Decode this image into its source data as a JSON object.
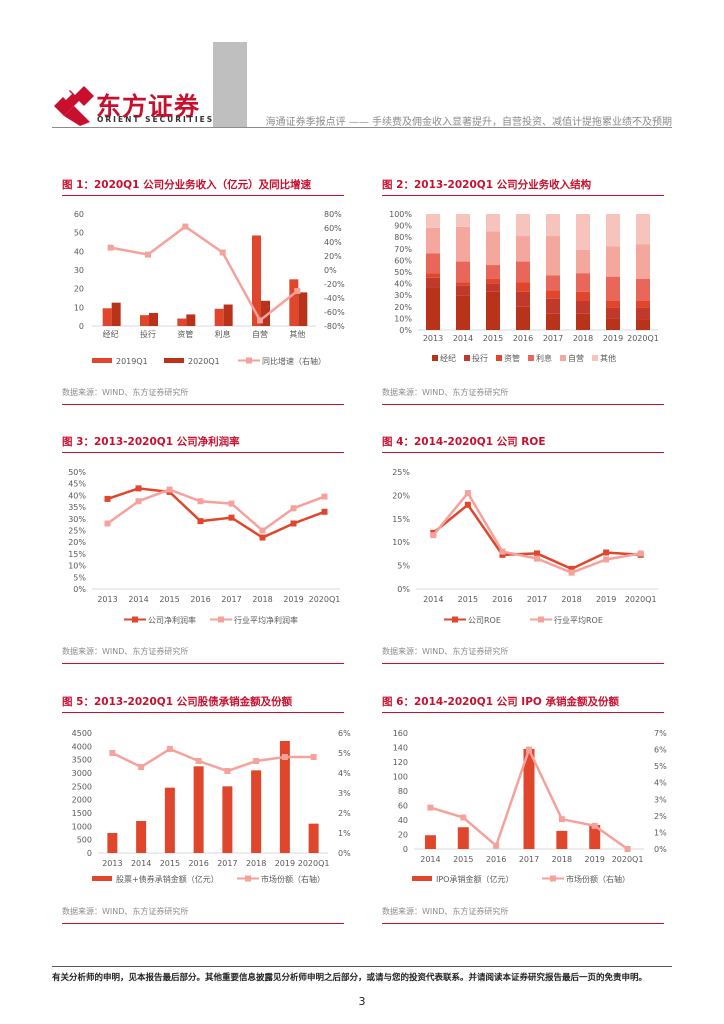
{
  "header": {
    "logo_cn": "东方证券",
    "logo_en": "ORIENT SECURITIES",
    "report_title": "海通证券季报点评 —— 手续费及佣金收入显著提升，自营投资、减值计提拖累业绩不及预期"
  },
  "colors": {
    "accent": "#c8102e",
    "dark_red": "#b83319",
    "red": "#e0462c",
    "salmon": "#f08a7a",
    "pink": "#f3a79d",
    "light_pink": "#f6c4bd",
    "line_pink": "#f4a29b",
    "grey": "#bfbfbf"
  },
  "figures": [
    {
      "title": "图 1：2020Q1 公司分业务收入（亿元）及同比增速",
      "source": "数据来源：WIND、东方证券研究所"
    },
    {
      "title": "图 2：2013-2020Q1 公司分业务收入结构",
      "source": "数据来源：WIND、东方证券研究所"
    },
    {
      "title": "图 3：2013-2020Q1 公司净利润率",
      "source": "数据来源：WIND、东方证券研究所"
    },
    {
      "title": "图 4：2014-2020Q1 公司 ROE",
      "source": "数据来源：WIND、东方证券研究所"
    },
    {
      "title": "图 5：2013-2020Q1 公司股债承销金额及份额",
      "source": "数据来源：WIND、东方证券研究所"
    },
    {
      "title": "图 6：2014-2020Q1 公司 IPO 承销金额及份额",
      "source": "数据来源：WIND、东方证券研究所"
    }
  ],
  "chart_data": [
    {
      "type": "bar",
      "categories": [
        "经纪",
        "投行",
        "资管",
        "利息",
        "自营",
        "其他"
      ],
      "series": [
        {
          "name": "2019Q1",
          "kind": "bar",
          "axis": "left",
          "values": [
            9.5,
            5.8,
            4.0,
            9.2,
            48.5,
            25.0
          ]
        },
        {
          "name": "2020Q1",
          "kind": "bar",
          "axis": "left",
          "values": [
            12.5,
            7.0,
            6.2,
            11.5,
            13.5,
            18.0
          ]
        },
        {
          "name": "同比增速（右轴）",
          "kind": "line",
          "axis": "right",
          "values": [
            32,
            22,
            62,
            25,
            -72,
            -30
          ]
        }
      ],
      "yticks": [
        "0",
        "10",
        "20",
        "30",
        "40",
        "50",
        "60"
      ],
      "ylim": [
        0,
        60
      ],
      "y2ticks": [
        "-80%",
        "-60%",
        "-40%",
        "-20%",
        "0%",
        "20%",
        "40%",
        "60%",
        "80%"
      ],
      "y2lim": [
        -80,
        80
      ]
    },
    {
      "type": "bar",
      "stacked": true,
      "categories": [
        "2013",
        "2014",
        "2015",
        "2016",
        "2017",
        "2018",
        "2019",
        "2020Q1"
      ],
      "series": [
        {
          "name": "经纪",
          "values": [
            37,
            30,
            33,
            20,
            14,
            14,
            10,
            9
          ]
        },
        {
          "name": "投行",
          "values": [
            8,
            8,
            7,
            13,
            13,
            11,
            9,
            10
          ]
        },
        {
          "name": "资管",
          "values": [
            4,
            3,
            4,
            8,
            7,
            8,
            6,
            6
          ]
        },
        {
          "name": "利息",
          "values": [
            17,
            18,
            12,
            18,
            13,
            16,
            21,
            19
          ]
        },
        {
          "name": "自营",
          "values": [
            22,
            30,
            29,
            22,
            34,
            20,
            26,
            30
          ]
        },
        {
          "name": "其他",
          "values": [
            12,
            11,
            15,
            19,
            19,
            31,
            28,
            26
          ]
        }
      ],
      "yticks": [
        "0%",
        "10%",
        "20%",
        "30%",
        "40%",
        "50%",
        "60%",
        "70%",
        "80%",
        "90%",
        "100%"
      ],
      "ylim": [
        0,
        100
      ]
    },
    {
      "type": "line",
      "categories": [
        "2013",
        "2014",
        "2015",
        "2016",
        "2017",
        "2018",
        "2019",
        "2020Q1"
      ],
      "series": [
        {
          "name": "公司净利润率",
          "values": [
            38.5,
            43,
            41.5,
            29,
            30.5,
            22,
            28,
            33
          ]
        },
        {
          "name": "行业平均净利润率",
          "values": [
            28,
            37.5,
            42.5,
            37.5,
            36.5,
            25,
            34.5,
            39.5
          ]
        }
      ],
      "yticks": [
        "0%",
        "5%",
        "10%",
        "15%",
        "20%",
        "25%",
        "30%",
        "35%",
        "40%",
        "45%",
        "50%"
      ],
      "ylim": [
        0,
        50
      ]
    },
    {
      "type": "line",
      "categories": [
        "2014",
        "2015",
        "2016",
        "2017",
        "2018",
        "2019",
        "2020Q1"
      ],
      "series": [
        {
          "name": "公司ROE",
          "values": [
            12,
            18,
            7.3,
            7.6,
            4.3,
            7.8,
            7.3
          ]
        },
        {
          "name": "行业平均ROE",
          "values": [
            11.5,
            20.5,
            8.0,
            6.5,
            3.5,
            6.3,
            7.6
          ]
        }
      ],
      "yticks": [
        "0%",
        "5%",
        "10%",
        "15%",
        "20%",
        "25%"
      ],
      "ylim": [
        0,
        25
      ]
    },
    {
      "type": "bar",
      "categories": [
        "2013",
        "2014",
        "2015",
        "2016",
        "2017",
        "2018",
        "2019",
        "2020Q1"
      ],
      "series": [
        {
          "name": "股票+债券承销金额（亿元）",
          "kind": "bar",
          "axis": "left",
          "values": [
            750,
            1200,
            2450,
            3250,
            2500,
            3100,
            4200,
            1100
          ]
        },
        {
          "name": "市场份额（右轴）",
          "kind": "line",
          "axis": "right",
          "values": [
            5.0,
            4.3,
            5.2,
            4.6,
            4.1,
            4.6,
            4.8,
            4.8
          ]
        }
      ],
      "yticks": [
        "0",
        "500",
        "1000",
        "1500",
        "2000",
        "2500",
        "3000",
        "3500",
        "4000",
        "4500"
      ],
      "ylim": [
        0,
        4500
      ],
      "y2ticks": [
        "0%",
        "1%",
        "2%",
        "3%",
        "4%",
        "5%",
        "6%"
      ],
      "y2lim": [
        0,
        6
      ]
    },
    {
      "type": "bar",
      "categories": [
        "2014",
        "2015",
        "2016",
        "2017",
        "2018",
        "2019",
        "2020Q1"
      ],
      "series": [
        {
          "name": "IPO承销金额（亿元）",
          "kind": "bar",
          "axis": "left",
          "values": [
            19,
            30,
            0,
            138,
            25,
            33,
            0
          ]
        },
        {
          "name": "市场份额（右轴）",
          "kind": "line",
          "axis": "right",
          "values": [
            2.5,
            1.9,
            0.2,
            6.0,
            1.8,
            1.4,
            0.0
          ]
        }
      ],
      "yticks": [
        "0",
        "20",
        "40",
        "60",
        "80",
        "100",
        "120",
        "140",
        "160"
      ],
      "ylim": [
        0,
        160
      ],
      "y2ticks": [
        "0%",
        "1%",
        "2%",
        "3%",
        "4%",
        "5%",
        "6%",
        "7%"
      ],
      "y2lim": [
        0,
        7
      ]
    }
  ],
  "footer": {
    "disclaimer": "有关分析师的申明，见本报告最后部分。其他重要信息披露见分析师申明之后部分，或请与您的投资代表联系。并请阅读本证券研究报告最后一页的免责申明。",
    "page_number": "3"
  }
}
